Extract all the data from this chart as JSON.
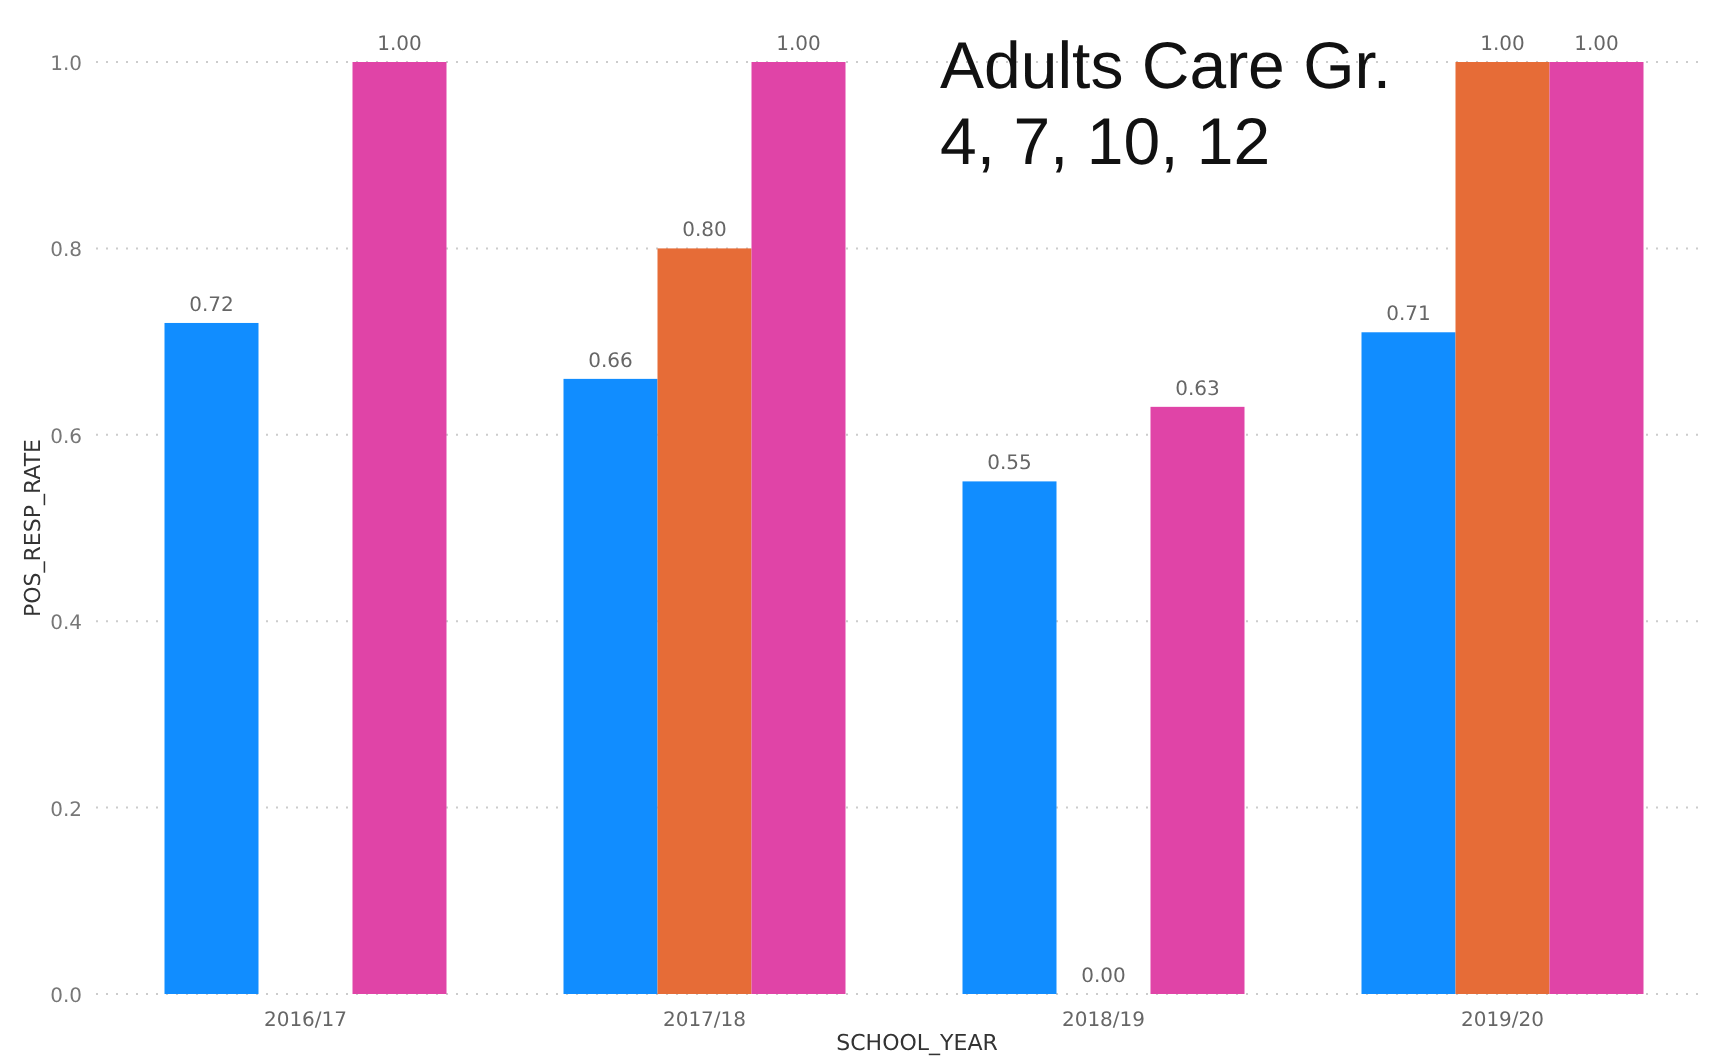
{
  "chart_data": {
    "type": "bar",
    "title": "Adults Care Gr. 4, 7, 10, 12",
    "xlabel": "SCHOOL_YEAR",
    "ylabel": "POS_RESP_RATE",
    "categories": [
      "2016/17",
      "2017/18",
      "2018/19",
      "2019/20"
    ],
    "series": [
      {
        "color": "#118dff",
        "values": [
          0.72,
          0.66,
          0.55,
          0.71
        ],
        "value_labels": [
          "0.72",
          "0.66",
          "0.55",
          "0.71"
        ]
      },
      {
        "color": "#e66c37",
        "values": [
          null,
          0.8,
          0.0,
          1.0
        ],
        "value_labels": [
          null,
          "0.80",
          "0.00",
          "1.00"
        ]
      },
      {
        "color": "#e044a7",
        "values": [
          1.0,
          1.0,
          0.63,
          1.0
        ],
        "value_labels": [
          "1.00",
          "1.00",
          "0.63",
          "1.00"
        ]
      }
    ],
    "ylim": [
      0,
      1
    ],
    "yticks": [
      {
        "value": 0,
        "label": "0.0"
      },
      {
        "value": 0.2,
        "label": "0.2"
      },
      {
        "value": 0.4,
        "label": "0.4"
      },
      {
        "value": 0.6,
        "label": "0.6"
      },
      {
        "value": 0.8,
        "label": "0.8"
      },
      {
        "value": 1,
        "label": "1.0"
      }
    ],
    "grid": "y"
  }
}
